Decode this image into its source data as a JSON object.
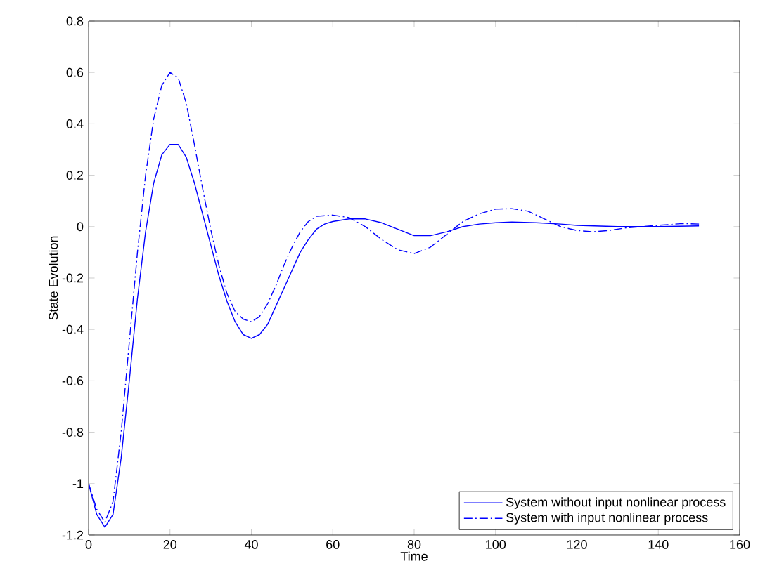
{
  "chart_data": {
    "type": "line",
    "xlabel": "Time",
    "ylabel": "State Evolution",
    "xlim": [
      0,
      160
    ],
    "ylim": [
      -1.2,
      0.8
    ],
    "xticks": [
      0,
      20,
      40,
      60,
      80,
      100,
      120,
      140,
      160
    ],
    "yticks": [
      -1.2,
      -1,
      -0.8,
      -0.6,
      -0.4,
      -0.2,
      0,
      0.2,
      0.4,
      0.6,
      0.8
    ],
    "grid": false,
    "legend": "bottom right",
    "marker": "none",
    "series": [
      {
        "name": "System without input nonlinear process",
        "color": "#0000ff",
        "line_style": "solid",
        "x": [
          0,
          2,
          4,
          6,
          8,
          10,
          12,
          14,
          16,
          18,
          20,
          22,
          24,
          26,
          28,
          30,
          32,
          34,
          36,
          38,
          40,
          42,
          44,
          46,
          48,
          50,
          52,
          54,
          56,
          58,
          60,
          64,
          68,
          72,
          76,
          80,
          84,
          88,
          92,
          96,
          100,
          104,
          110,
          116,
          120,
          130,
          140,
          150
        ],
        "values": [
          -1,
          -1.12,
          -1.17,
          -1.12,
          -0.9,
          -0.6,
          -0.28,
          -0.02,
          0.17,
          0.28,
          0.32,
          0.32,
          0.27,
          0.17,
          0.05,
          -0.07,
          -0.19,
          -0.29,
          -0.37,
          -0.42,
          -0.435,
          -0.42,
          -0.38,
          -0.31,
          -0.24,
          -0.17,
          -0.1,
          -0.05,
          -0.01,
          0.01,
          0.02,
          0.03,
          0.03,
          0.015,
          -0.01,
          -0.035,
          -0.035,
          -0.02,
          0,
          0.01,
          0.015,
          0.018,
          0.015,
          0.01,
          0.005,
          0,
          0,
          0.003
        ]
      },
      {
        "name": "System with input nonlinear process",
        "color": "#0000ff",
        "line_style": "dashdot",
        "x": [
          0,
          2,
          4,
          6,
          8,
          10,
          12,
          14,
          16,
          18,
          20,
          22,
          24,
          26,
          28,
          30,
          32,
          34,
          36,
          38,
          40,
          42,
          44,
          46,
          48,
          50,
          52,
          54,
          56,
          60,
          64,
          68,
          72,
          76,
          80,
          84,
          88,
          92,
          96,
          100,
          104,
          108,
          112,
          116,
          120,
          124,
          128,
          132,
          140,
          146,
          150
        ],
        "values": [
          -1,
          -1.1,
          -1.15,
          -1.07,
          -0.8,
          -0.45,
          -0.1,
          0.2,
          0.42,
          0.55,
          0.6,
          0.58,
          0.48,
          0.32,
          0.15,
          -0.01,
          -0.15,
          -0.26,
          -0.33,
          -0.36,
          -0.37,
          -0.35,
          -0.3,
          -0.23,
          -0.15,
          -0.08,
          -0.02,
          0.02,
          0.04,
          0.045,
          0.035,
          0,
          -0.05,
          -0.09,
          -0.105,
          -0.08,
          -0.03,
          0.02,
          0.05,
          0.068,
          0.07,
          0.06,
          0.03,
          0,
          -0.015,
          -0.02,
          -0.015,
          -0.005,
          0.005,
          0.012,
          0.01
        ]
      }
    ]
  }
}
